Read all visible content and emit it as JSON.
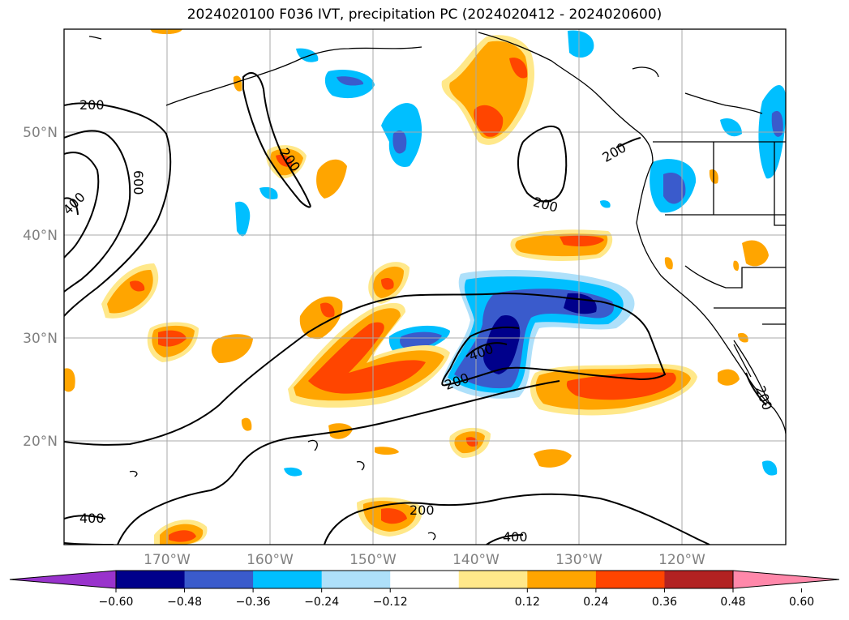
{
  "title": "2024020100 F036 IVT, precipitation PC (2024020412 - 2024020600)",
  "map": {
    "lat_labels": [
      "50°N",
      "40°N",
      "30°N",
      "20°N"
    ],
    "lon_labels": [
      "170°W",
      "160°W",
      "150°W",
      "140°W",
      "130°W",
      "120°W"
    ],
    "gridlines": true,
    "contour_field": "IVT",
    "contour_levels": [
      200,
      400,
      600
    ],
    "contour_labels": [
      {
        "text": "200"
      },
      {
        "text": "200"
      },
      {
        "text": "200"
      },
      {
        "text": "200"
      },
      {
        "text": "200"
      },
      {
        "text": "200"
      },
      {
        "text": "200"
      },
      {
        "text": "400"
      },
      {
        "text": "400"
      },
      {
        "text": "400"
      },
      {
        "text": "400"
      },
      {
        "text": "600"
      }
    ]
  },
  "colorbar": {
    "ticks": [
      "−0.60",
      "−0.48",
      "−0.36",
      "−0.24",
      "−0.12",
      "0.12",
      "0.24",
      "0.36",
      "0.48",
      "0.60"
    ],
    "colors": [
      "#9933cc",
      "#00008b",
      "#3a5bcc",
      "#00bfff",
      "#aee0fa",
      "#ffffff",
      "#ffe88a",
      "#ffa500",
      "#ff4500",
      "#b22222",
      "#ff88aa"
    ],
    "extend": "both"
  },
  "field_colors": {
    "neg_light": "#aee0fa",
    "neg_mid": "#00bfff",
    "neg_strong": "#3a5bcc",
    "neg_max": "#00008b",
    "pos_light": "#ffe88a",
    "pos_mid": "#ffa500",
    "pos_strong": "#ff4500",
    "pos_max": "#b22222"
  }
}
